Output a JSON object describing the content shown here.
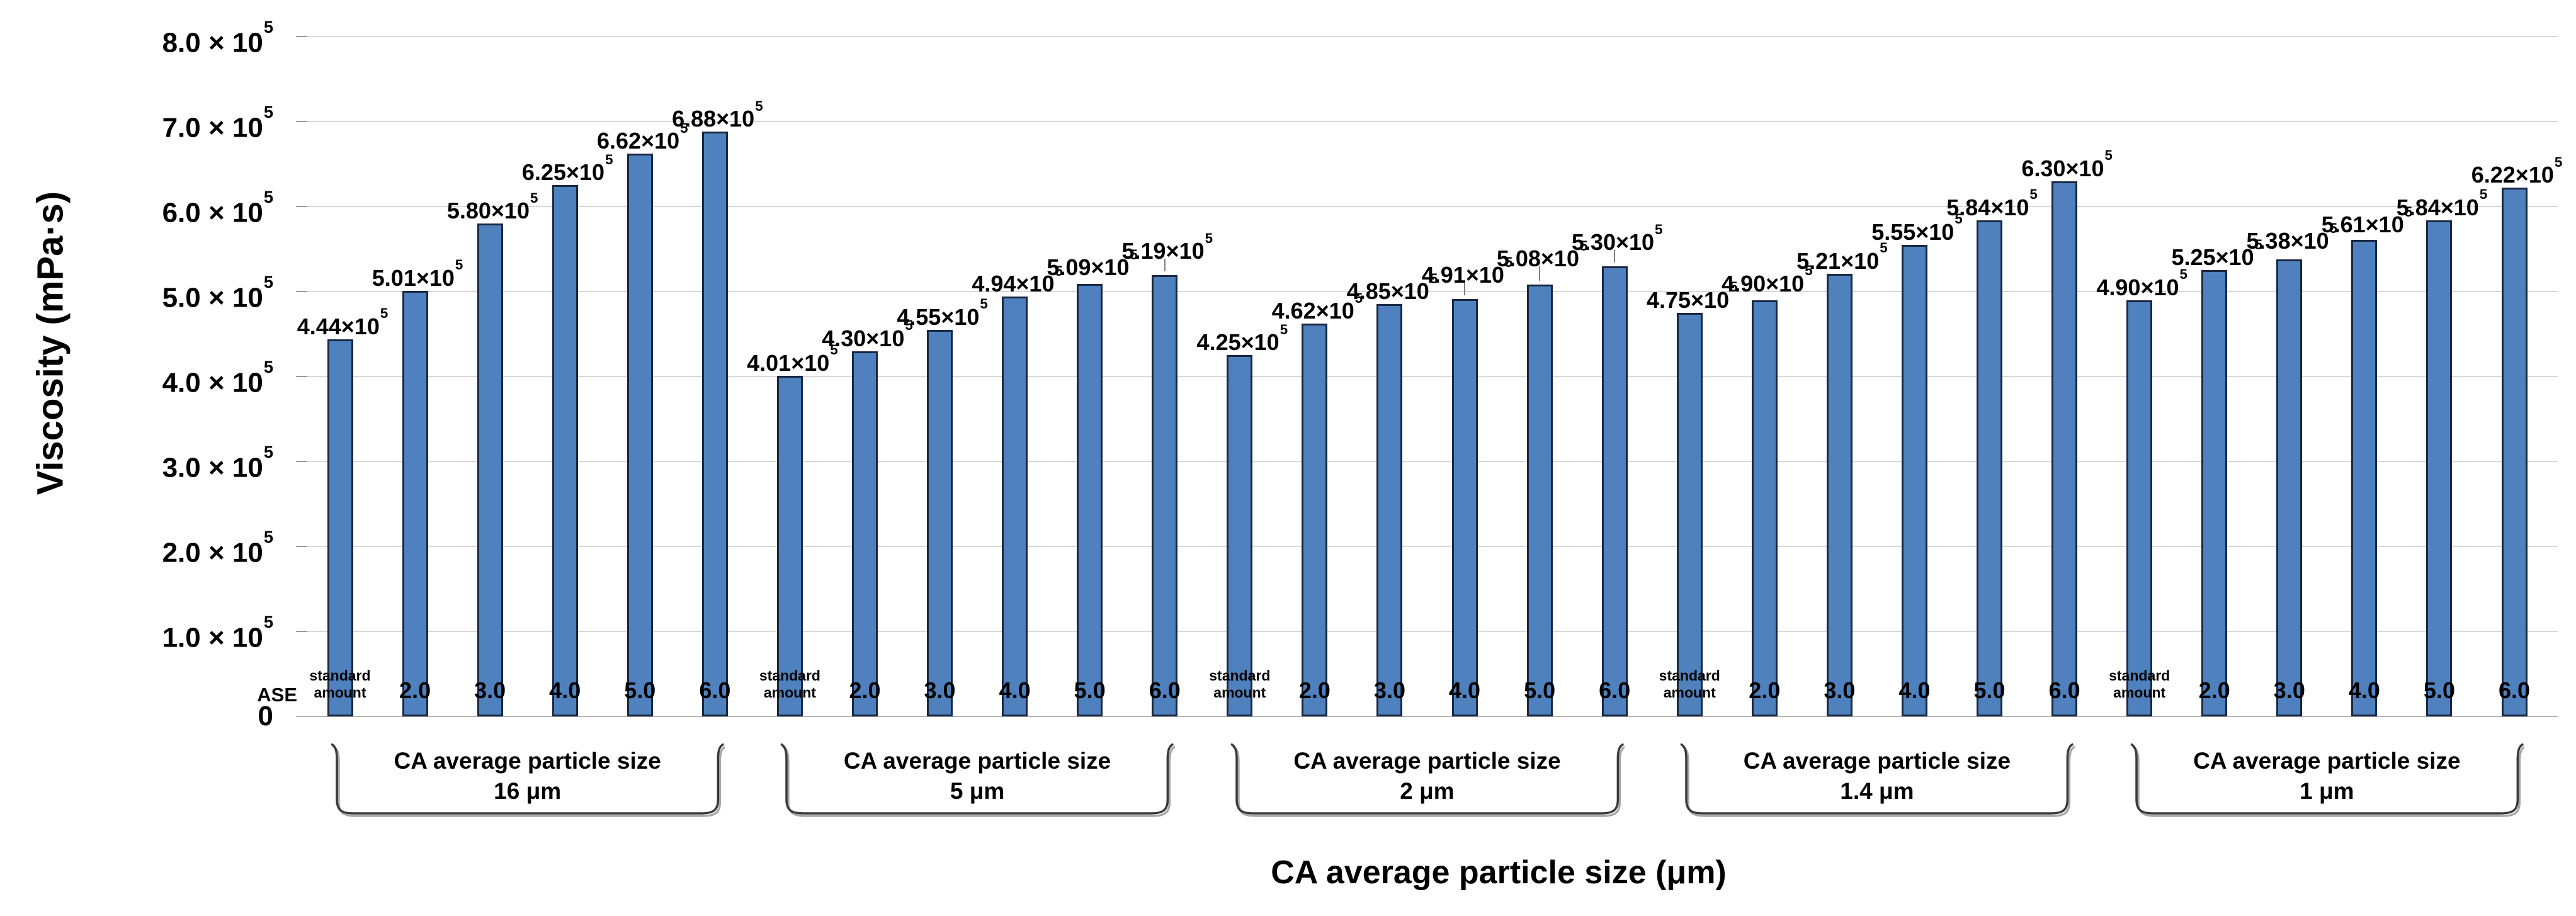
{
  "chart_data": {
    "type": "bar",
    "title": "",
    "ylabel": "Viscosity (mPa·s)",
    "xlabel": "CA average particle size (μm)",
    "x_category_row_header": "ASE",
    "ylim": [
      0,
      800000
    ],
    "grid": true,
    "legend": "none",
    "bar_color": "#4e81bd",
    "bar_border_color": "#1a2742",
    "y_ticks": [
      {
        "value": 800000,
        "label": "8.0 × 10^5"
      },
      {
        "value": 700000,
        "label": "7.0 × 10^5"
      },
      {
        "value": 600000,
        "label": "6.0 × 10^5"
      },
      {
        "value": 500000,
        "label": "5.0 × 10^5"
      },
      {
        "value": 400000,
        "label": "4.0 × 10^5"
      },
      {
        "value": 300000,
        "label": "3.0 × 10^5"
      },
      {
        "value": 200000,
        "label": "2.0 × 10^5"
      },
      {
        "value": 100000,
        "label": "1.0 × 10^5"
      },
      {
        "value": 0,
        "label": "0"
      }
    ],
    "categories_per_group": [
      "standard amount",
      "2.0",
      "3.0",
      "4.0",
      "5.0",
      "6.0"
    ],
    "groups": [
      {
        "bracket_line1": "CA average particle size",
        "bracket_line2": "16 μm",
        "values": [
          444000,
          501000,
          580000,
          625000,
          662000,
          688000
        ],
        "value_labels": [
          "4.44×10^5",
          "5.01×10^5",
          "5.80×10^5",
          "6.25×10^5",
          "6.62×10^5",
          "6.88×10^5"
        ]
      },
      {
        "bracket_line1": "CA average particle size",
        "bracket_line2": "5 μm",
        "values": [
          401000,
          430000,
          455000,
          494000,
          509000,
          519000
        ],
        "value_labels": [
          "4.01×10^5",
          "4.30×10^5",
          "4.55×10^5",
          "4.94×10^5",
          "5.09×10^5",
          "5.19×10^5"
        ]
      },
      {
        "bracket_line1": "CA average particle size",
        "bracket_line2": "2 μm",
        "values": [
          425000,
          462000,
          485000,
          491000,
          508000,
          530000
        ],
        "value_labels": [
          "4.25×10^5",
          "4.62×10^5",
          "4.85×10^5",
          "4.91×10^5",
          "5.08×10^5",
          "5.30×10^5"
        ]
      },
      {
        "bracket_line1": "CA average particle size",
        "bracket_line2": "1.4 μm",
        "values": [
          475000,
          490000,
          521000,
          555000,
          584000,
          630000
        ],
        "value_labels": [
          "4.75×10^5",
          "4.90×10^5",
          "5.21×10^5",
          "5.55×10^5",
          "5.84×10^5",
          "6.30×10^5"
        ]
      },
      {
        "bracket_line1": "CA average particle size",
        "bracket_line2": "1 μm",
        "values": [
          490000,
          525000,
          538000,
          561000,
          584000,
          622000
        ],
        "value_labels": [
          "4.90×10^5",
          "5.25×10^5",
          "5.38×10^5",
          "5.61×10^5",
          "5.84×10^5",
          "6.22×10^5"
        ]
      }
    ]
  }
}
